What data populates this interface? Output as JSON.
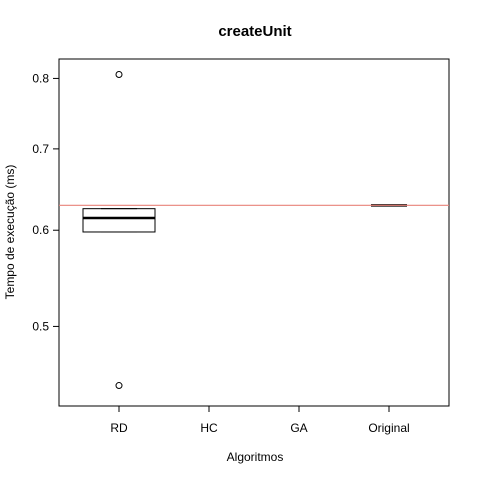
{
  "chart_data": {
    "type": "boxplot",
    "title": "createUnit",
    "xlabel": "Algoritmos",
    "ylabel": "Tempo de execução (ms)",
    "y_scale": "log",
    "ylim": [
      0.43,
      0.83
    ],
    "y_ticks": [
      {
        "value": 0.5,
        "label": "0.5"
      },
      {
        "value": 0.6,
        "label": "0.6"
      },
      {
        "value": 0.7,
        "label": "0.7"
      },
      {
        "value": 0.8,
        "label": "0.8"
      }
    ],
    "categories": [
      "RD",
      "HC",
      "GA",
      "Original"
    ],
    "boxes": [
      {
        "category": "RD",
        "whisker_low": 0.598,
        "q1": 0.598,
        "median": 0.614,
        "q3": 0.625,
        "whisker_high": 0.625,
        "outliers": [
          0.806,
          0.447
        ]
      },
      {
        "category": "HC"
      },
      {
        "category": "GA"
      },
      {
        "category": "Original",
        "whisker_low": 0.629,
        "q1": 0.629,
        "median": 0.629,
        "q3": 0.629,
        "whisker_high": 0.629,
        "outliers": []
      }
    ],
    "reference_line": {
      "value": 0.629,
      "color": "#e8837a"
    },
    "grid": false,
    "legend": "none"
  }
}
